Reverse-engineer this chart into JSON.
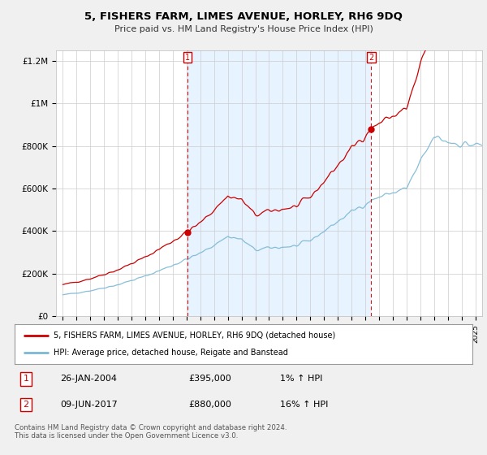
{
  "title": "5, FISHERS FARM, LIMES AVENUE, HORLEY, RH6 9DQ",
  "subtitle": "Price paid vs. HM Land Registry's House Price Index (HPI)",
  "legend_line1": "5, FISHERS FARM, LIMES AVENUE, HORLEY, RH6 9DQ (detached house)",
  "legend_line2": "HPI: Average price, detached house, Reigate and Banstead",
  "footnote": "Contains HM Land Registry data © Crown copyright and database right 2024.\nThis data is licensed under the Open Government Licence v3.0.",
  "marker1_date": "26-JAN-2004",
  "marker1_price": "£395,000",
  "marker1_hpi": "1% ↑ HPI",
  "marker2_date": "09-JUN-2017",
  "marker2_price": "£880,000",
  "marker2_hpi": "16% ↑ HPI",
  "hpi_color": "#7ab8d4",
  "price_color": "#cc0000",
  "marker_color": "#cc0000",
  "shade_color": "#ddeeff",
  "background_color": "#f0f0f0",
  "plot_bg_color": "#ffffff",
  "sale1_year": 2004.07,
  "sale1_price": 395000,
  "sale2_year": 2017.44,
  "sale2_price": 880000,
  "ylim_max": 1250000,
  "xlim_min": 1994.5,
  "xlim_max": 2025.5
}
